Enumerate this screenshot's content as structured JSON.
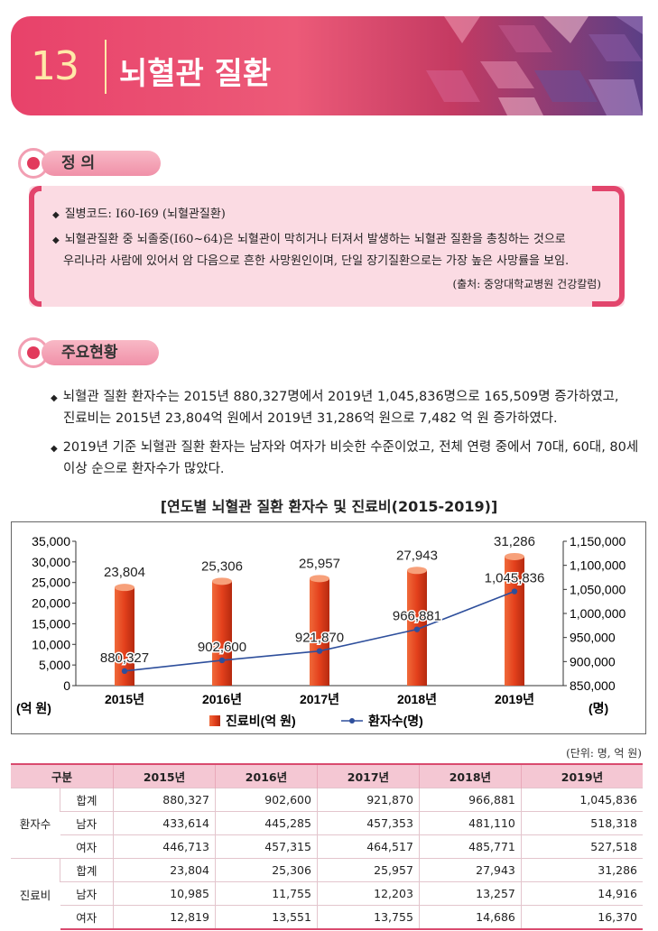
{
  "header": {
    "number": "13",
    "title": "뇌혈관 질환"
  },
  "definition": {
    "section_label": "정   의",
    "lines": [
      "질병코드: I60-I69 (뇌혈관질환)",
      "뇌혈관질환 중 뇌졸중(I60~64)은 뇌혈관이 막히거나 터져서 발생하는 뇌혈관 질환을 총칭하는 것으로",
      "우리나라 사람에 있어서 암 다음으로 흔한 사망원인이며, 단일 장기질환으로는 가장 높은 사망률을 보임."
    ],
    "source": "(출처: 중앙대학교병원 건강칼럼)"
  },
  "status": {
    "section_label": "주요현황",
    "lines": [
      "뇌혈관 질환 환자수는 2015년 880,327명에서 2019년 1,045,836명으로 165,509명 증가하였고,",
      "진료비는 2015년 23,804억 원에서 2019년 31,286억 원으로 7,482 억 원 증가하였다.",
      "2019년 기준 뇌혈관 질환 환자는 남자와 여자가 비슷한 수준이었고, 전체 연령 중에서 70대, 60대, 80세",
      "이상 순으로 환자수가 많았다."
    ]
  },
  "chart_data": {
    "type": "bar",
    "title": "[연도별 뇌혈관 질환 환자수 및 진료비(2015-2019)]",
    "categories": [
      "2015년",
      "2016년",
      "2017년",
      "2018년",
      "2019년"
    ],
    "series": [
      {
        "name": "진료비(억 원)",
        "type": "bar",
        "axis": "left",
        "color": "#e8402a",
        "values": [
          23804,
          25306,
          25957,
          27943,
          31286
        ]
      },
      {
        "name": "환자수(명)",
        "type": "line",
        "axis": "right",
        "color": "#2e4f9c",
        "values": [
          880327,
          902600,
          921870,
          966881,
          1045836
        ]
      }
    ],
    "bar_labels": [
      "23,804",
      "25,306",
      "25,957",
      "27,943",
      "31,286"
    ],
    "line_labels": [
      "880,327",
      "902,600",
      "921,870",
      "966,881",
      "1,045,836"
    ],
    "ylim_left": [
      0,
      35000
    ],
    "yticks_left": [
      "35,000",
      "30,000",
      "25,000",
      "20,000",
      "15,000",
      "10,000",
      "5,000",
      "0"
    ],
    "ylim_right": [
      850000,
      1150000
    ],
    "yticks_right": [
      "1,150,000",
      "1,100,000",
      "1,050,000",
      "1,000,000",
      "950,000",
      "900,000",
      "850,000"
    ],
    "ylabel_left": "(억 원)",
    "ylabel_right": "(명)",
    "legend_position": "bottom",
    "grid": false
  },
  "table": {
    "unit": "(단위: 명, 억 원)",
    "headers": [
      "구분",
      "2015년",
      "2016년",
      "2017년",
      "2018년",
      "2019년"
    ],
    "groups": [
      {
        "name": "환자수",
        "rows": [
          {
            "label": "합계",
            "values": [
              "880,327",
              "902,600",
              "921,870",
              "966,881",
              "1,045,836"
            ]
          },
          {
            "label": "남자",
            "values": [
              "433,614",
              "445,285",
              "457,353",
              "481,110",
              "518,318"
            ]
          },
          {
            "label": "여자",
            "values": [
              "446,713",
              "457,315",
              "464,517",
              "485,771",
              "527,518"
            ]
          }
        ]
      },
      {
        "name": "진료비",
        "rows": [
          {
            "label": "합계",
            "values": [
              "23,804",
              "25,306",
              "25,957",
              "27,943",
              "31,286"
            ]
          },
          {
            "label": "남자",
            "values": [
              "10,985",
              "11,755",
              "12,203",
              "13,257",
              "14,916"
            ]
          },
          {
            "label": "여자",
            "values": [
              "12,819",
              "13,551",
              "13,755",
              "14,686",
              "16,370"
            ]
          }
        ]
      }
    ]
  }
}
